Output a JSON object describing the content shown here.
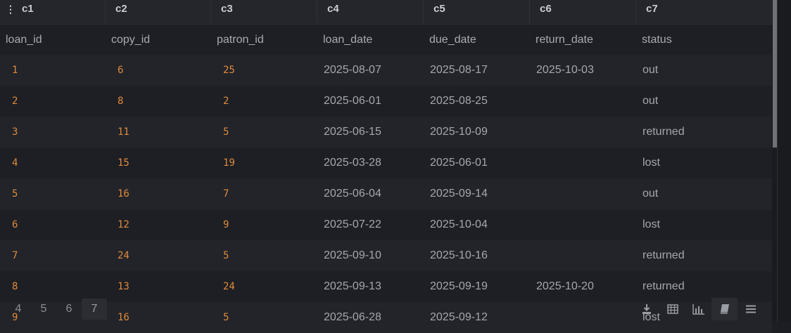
{
  "grid": {
    "column_letters": [
      "c1",
      "c2",
      "c3",
      "c4",
      "c5",
      "c6",
      "c7"
    ],
    "column_names": [
      "loan_id",
      "copy_id",
      "patron_id",
      "loan_date",
      "due_date",
      "return_date",
      "status"
    ],
    "rows": [
      [
        "1",
        "6",
        "25",
        "2025-08-07",
        "2025-08-17",
        "2025-10-03",
        "out"
      ],
      [
        "2",
        "8",
        "2",
        "2025-06-01",
        "2025-08-25",
        "",
        "out"
      ],
      [
        "3",
        "11",
        "5",
        "2025-06-15",
        "2025-10-09",
        "",
        "returned"
      ],
      [
        "4",
        "15",
        "19",
        "2025-03-28",
        "2025-06-01",
        "",
        "lost"
      ],
      [
        "5",
        "16",
        "7",
        "2025-06-04",
        "2025-09-14",
        "",
        "out"
      ],
      [
        "6",
        "12",
        "9",
        "2025-07-22",
        "2025-10-04",
        "",
        "lost"
      ],
      [
        "7",
        "24",
        "5",
        "2025-09-10",
        "2025-10-16",
        "",
        "returned"
      ],
      [
        "8",
        "13",
        "24",
        "2025-09-13",
        "2025-09-19",
        "2025-10-20",
        "returned"
      ],
      [
        "9",
        "16",
        "5",
        "2025-06-28",
        "2025-09-12",
        "",
        "lost"
      ]
    ]
  },
  "pagination": {
    "pages": [
      "4",
      "5",
      "6",
      "7"
    ],
    "current": "7"
  },
  "toolbar": {
    "icons": [
      "download-icon",
      "table-icon",
      "chart-icon",
      "book-icon",
      "menu-icon"
    ],
    "active": "book-icon"
  },
  "colors": {
    "background": "#1c1e23",
    "header": "#24262b",
    "numeric_text": "#e08a3c",
    "text": "#a4a7ad"
  }
}
